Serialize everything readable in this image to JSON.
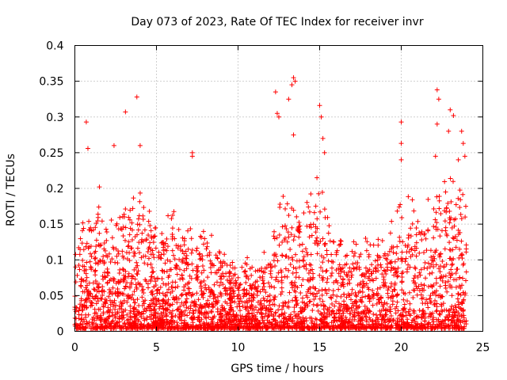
{
  "chart_data": {
    "type": "scatter",
    "title": "Day 073 of 2023, Rate Of TEC Index for receiver invr",
    "xlabel": "GPS time / hours",
    "ylabel": "ROTI / TECUs",
    "xlim": [
      0,
      25
    ],
    "ylim": [
      0,
      0.4
    ],
    "xticks": [
      0,
      5,
      10,
      15,
      20,
      25
    ],
    "xtick_labels": [
      "0",
      "5",
      "10",
      "15",
      "20",
      "25"
    ],
    "yticks": [
      0,
      0.05,
      0.1,
      0.15,
      0.2,
      0.25,
      0.3,
      0.35,
      0.4
    ],
    "ytick_labels": [
      "0",
      "0.05",
      "0.1",
      "0.15",
      "0.2",
      "0.25",
      "0.3",
      "0.35",
      "0.4"
    ],
    "grid": true,
    "marker": "plus",
    "series": [
      {
        "name": "ROTI",
        "color": "#ff0000",
        "x_range": [
          0,
          24
        ],
        "envelope": {
          "x": [
            0,
            0.5,
            1.0,
            1.5,
            2.0,
            2.5,
            3.0,
            3.5,
            4.0,
            4.5,
            5.0,
            5.5,
            6.0,
            6.5,
            7.0,
            7.5,
            8.0,
            8.5,
            9.0,
            9.5,
            10.0,
            10.5,
            11.0,
            11.5,
            12.0,
            12.5,
            13.0,
            13.5,
            14.0,
            14.5,
            15.0,
            15.5,
            16.0,
            16.5,
            17.0,
            17.5,
            18.0,
            18.5,
            19.0,
            19.5,
            20.0,
            20.5,
            21.0,
            21.5,
            22.0,
            22.5,
            23.0,
            23.5,
            24.0
          ],
          "typical_max": [
            0.13,
            0.16,
            0.19,
            0.2,
            0.17,
            0.2,
            0.21,
            0.18,
            0.22,
            0.2,
            0.15,
            0.17,
            0.18,
            0.14,
            0.15,
            0.14,
            0.16,
            0.13,
            0.12,
            0.11,
            0.1,
            0.12,
            0.1,
            0.1,
            0.14,
            0.22,
            0.2,
            0.18,
            0.23,
            0.2,
            0.24,
            0.16,
            0.15,
            0.13,
            0.13,
            0.12,
            0.14,
            0.15,
            0.14,
            0.16,
            0.18,
            0.21,
            0.17,
            0.19,
            0.22,
            0.24,
            0.24,
            0.21,
            0.2
          ]
        },
        "outliers": [
          {
            "x": 0.7,
            "y": 0.293
          },
          {
            "x": 0.8,
            "y": 0.256
          },
          {
            "x": 2.4,
            "y": 0.26
          },
          {
            "x": 3.1,
            "y": 0.307
          },
          {
            "x": 3.8,
            "y": 0.328
          },
          {
            "x": 4.0,
            "y": 0.26
          },
          {
            "x": 7.2,
            "y": 0.25
          },
          {
            "x": 7.2,
            "y": 0.245
          },
          {
            "x": 12.3,
            "y": 0.335
          },
          {
            "x": 12.4,
            "y": 0.305
          },
          {
            "x": 12.5,
            "y": 0.3
          },
          {
            "x": 13.1,
            "y": 0.325
          },
          {
            "x": 13.3,
            "y": 0.345
          },
          {
            "x": 13.4,
            "y": 0.355
          },
          {
            "x": 13.5,
            "y": 0.35
          },
          {
            "x": 13.4,
            "y": 0.275
          },
          {
            "x": 15.0,
            "y": 0.316
          },
          {
            "x": 15.1,
            "y": 0.3
          },
          {
            "x": 15.2,
            "y": 0.27
          },
          {
            "x": 15.3,
            "y": 0.25
          },
          {
            "x": 20.0,
            "y": 0.293
          },
          {
            "x": 20.0,
            "y": 0.263
          },
          {
            "x": 20.0,
            "y": 0.24
          },
          {
            "x": 22.2,
            "y": 0.338
          },
          {
            "x": 22.3,
            "y": 0.325
          },
          {
            "x": 22.2,
            "y": 0.29
          },
          {
            "x": 22.1,
            "y": 0.245
          },
          {
            "x": 23.0,
            "y": 0.31
          },
          {
            "x": 23.2,
            "y": 0.302
          },
          {
            "x": 22.9,
            "y": 0.28
          },
          {
            "x": 23.7,
            "y": 0.28
          },
          {
            "x": 23.8,
            "y": 0.263
          },
          {
            "x": 23.9,
            "y": 0.245
          },
          {
            "x": 23.5,
            "y": 0.24
          }
        ]
      }
    ]
  }
}
